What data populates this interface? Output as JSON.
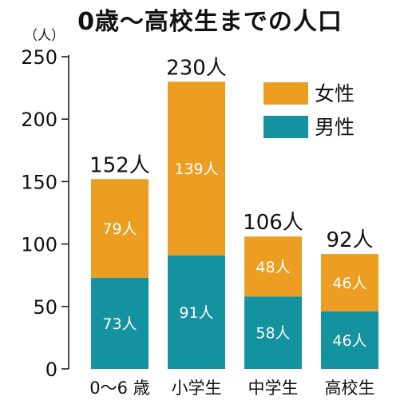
{
  "chart_data": {
    "type": "bar",
    "stacked": true,
    "title": "0歳〜高校生までの人口",
    "yunit": "（人）",
    "ylim": [
      0,
      250
    ],
    "yticks": [
      0,
      50,
      100,
      150,
      200,
      250
    ],
    "grid": false,
    "legend_position": "top-right",
    "categories": [
      "0〜6 歳",
      "小学生",
      "中学生",
      "高校生"
    ],
    "totals": [
      "152人",
      "230人",
      "106人",
      "92人"
    ],
    "total_values": [
      152,
      230,
      106,
      92
    ],
    "series": [
      {
        "name": "男性",
        "color": "#1592a0",
        "values": [
          73,
          91,
          58,
          46
        ],
        "labels": [
          "73人",
          "91人",
          "58人",
          "46人"
        ]
      },
      {
        "name": "女性",
        "color": "#eb9e22",
        "values": [
          79,
          139,
          48,
          46
        ],
        "labels": [
          "79人",
          "139人",
          "48人",
          "46人"
        ]
      }
    ],
    "legend": [
      {
        "name": "女性",
        "color": "#eb9e22"
      },
      {
        "name": "男性",
        "color": "#1592a0"
      }
    ]
  }
}
